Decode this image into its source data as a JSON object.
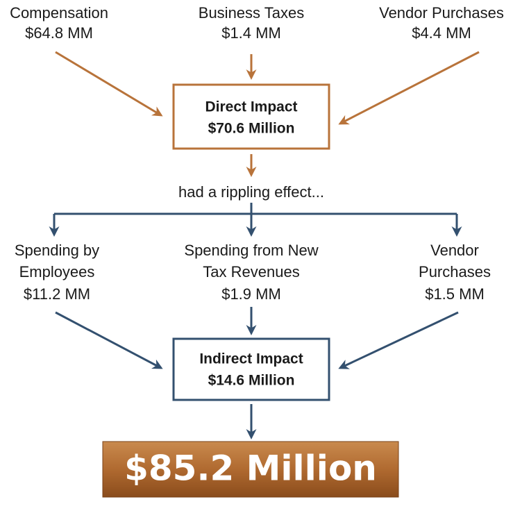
{
  "direct_sources": [
    {
      "lines": [
        "Compensation",
        "$64.8 MM"
      ]
    },
    {
      "lines": [
        "Business Taxes",
        "$1.4 MM"
      ]
    },
    {
      "lines": [
        "Vendor Purchases",
        "$4.4 MM"
      ]
    }
  ],
  "direct_box": {
    "lines": [
      "Direct Impact",
      "$70.6 Million"
    ]
  },
  "connector": "had a rippling effect...",
  "indirect_sources": [
    {
      "lines": [
        "Spending by",
        "Employees",
        "$11.2 MM"
      ]
    },
    {
      "lines": [
        "Spending from New",
        "Tax Revenues",
        "$1.9 MM"
      ]
    },
    {
      "lines": [
        "Vendor",
        "Purchases",
        "$1.5 MM"
      ]
    }
  ],
  "indirect_box": {
    "lines": [
      "Indirect Impact",
      "$14.6 Million"
    ]
  },
  "total": "$85.2 Million"
}
